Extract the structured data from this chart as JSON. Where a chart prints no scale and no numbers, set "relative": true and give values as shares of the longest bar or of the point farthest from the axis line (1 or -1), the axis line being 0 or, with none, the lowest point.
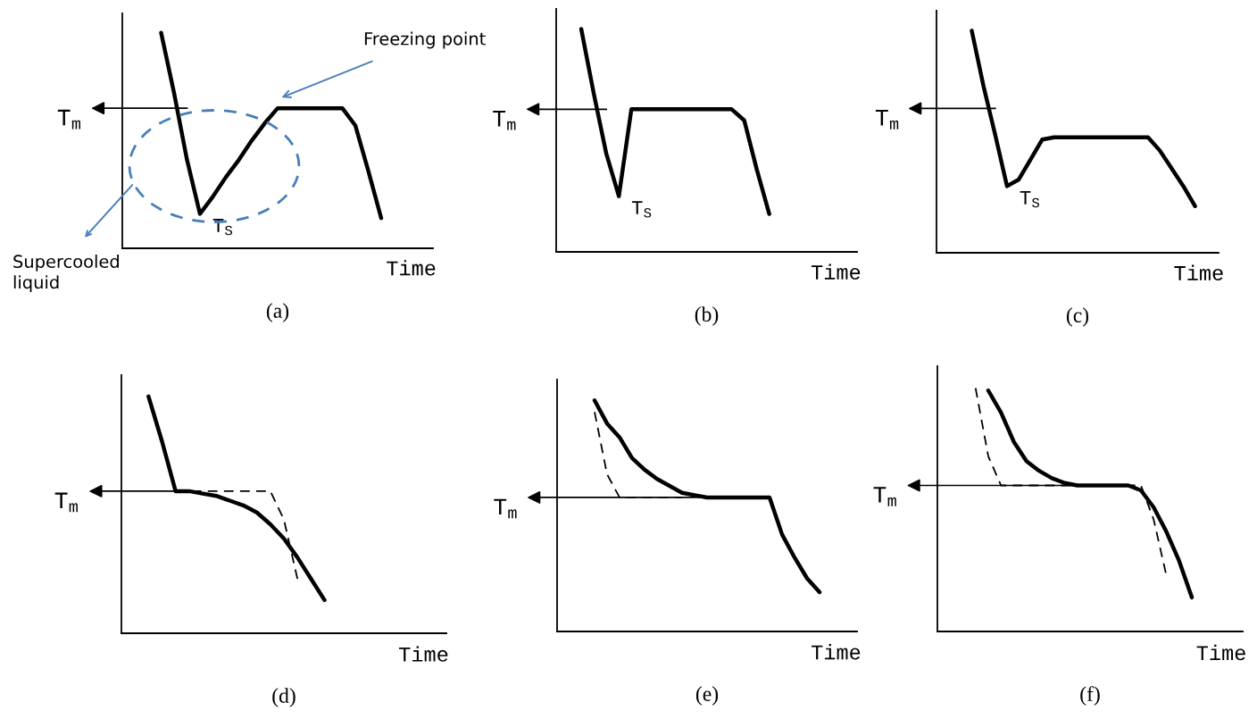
{
  "chart_data": [
    {
      "type": "line",
      "title": "(a)",
      "xlabel": "Time",
      "relative": true,
      "categories": [
        null,
        null,
        null,
        null,
        null,
        null,
        null,
        null,
        null,
        null,
        null,
        null,
        null,
        null,
        null,
        null,
        null,
        null,
        null,
        null,
        null,
        null,
        null,
        null,
        null
      ],
      "series": [
        {
          "color": "#000000",
          "line_style": "solid",
          "values": [
            null,
            null,
            null,
            1.0,
            0.72,
            0.41,
            0.16,
            0.24,
            0.33,
            0.41,
            0.5,
            0.58,
            0.65,
            0.65,
            0.65,
            0.65,
            0.65,
            0.65,
            0.57,
            0.36,
            0.14,
            null,
            null,
            null,
            null
          ]
        }
      ],
      "ref_lines": [
        {
          "axis": "y",
          "value": 0.65,
          "label": "T$_{m}$"
        }
      ],
      "annotations": [
        "T$_{S}$",
        "Freezing point",
        "Supercooled\nliquid"
      ]
    },
    {
      "type": "line",
      "title": "(b)",
      "xlabel": "Time",
      "relative": true,
      "categories": [
        null,
        null,
        null,
        null,
        null,
        null,
        null,
        null,
        null,
        null,
        null,
        null,
        null,
        null,
        null,
        null,
        null,
        null,
        null,
        null,
        null,
        null,
        null,
        null,
        null
      ],
      "series": [
        {
          "color": "#000000",
          "line_style": "solid",
          "values": [
            null,
            null,
            1.0,
            0.71,
            0.44,
            0.25,
            0.64,
            0.64,
            0.64,
            0.64,
            0.64,
            0.64,
            0.64,
            0.64,
            0.64,
            0.59,
            0.37,
            0.17,
            null,
            null,
            null,
            null,
            null,
            null,
            null
          ]
        }
      ],
      "ref_lines": [
        {
          "axis": "y",
          "value": 0.64,
          "label": "T$_{m}$"
        }
      ],
      "annotations": [
        "T$_{S}$"
      ]
    },
    {
      "type": "line",
      "title": "(c)",
      "xlabel": "Time",
      "relative": true,
      "categories": [
        null,
        null,
        null,
        null,
        null,
        null,
        null,
        null,
        null,
        null,
        null,
        null,
        null,
        null,
        null,
        null,
        null,
        null,
        null,
        null,
        null,
        null,
        null,
        null,
        null
      ],
      "series": [
        {
          "color": "#000000",
          "line_style": "solid",
          "values": [
            null,
            null,
            null,
            1.0,
            0.75,
            0.53,
            0.3,
            0.33,
            0.42,
            0.51,
            0.52,
            0.52,
            0.52,
            0.52,
            0.52,
            0.52,
            0.52,
            0.52,
            0.52,
            0.46,
            0.38,
            0.3,
            0.21,
            null,
            null
          ]
        }
      ],
      "ref_lines": [
        {
          "axis": "y",
          "value": 0.65,
          "label": "T$_{m}$"
        }
      ],
      "annotations": [
        "T$_{S}$"
      ]
    },
    {
      "type": "line",
      "title": "(d)",
      "xlabel": "Time",
      "relative": true,
      "categories": [
        null,
        null,
        null,
        null,
        null,
        null,
        null,
        null,
        null,
        null,
        null,
        null,
        null,
        null,
        null,
        null,
        null,
        null,
        null,
        null,
        null,
        null,
        null,
        null,
        null
      ],
      "series": [
        {
          "color": "#000000",
          "line_style": "solid",
          "values": [
            null,
            null,
            1.0,
            0.81,
            0.6,
            0.6,
            0.59,
            0.58,
            0.56,
            0.54,
            0.51,
            0.46,
            0.4,
            0.32,
            0.23,
            0.14,
            null,
            null,
            null,
            null,
            null,
            null,
            null,
            null,
            null
          ]
        },
        {
          "color": "#000000",
          "line_style": "dashed",
          "values": [
            null,
            null,
            null,
            null,
            0.6,
            0.6,
            0.6,
            0.6,
            0.6,
            0.6,
            0.6,
            0.6,
            0.48,
            0.23,
            null,
            null,
            null,
            null,
            null,
            null,
            null,
            null,
            null,
            null,
            null
          ]
        }
      ],
      "ref_lines": [
        {
          "axis": "y",
          "value": 0.6,
          "label": "T$_{m}$"
        }
      ]
    },
    {
      "type": "line",
      "title": "(e)",
      "xlabel": "Time",
      "relative": true,
      "categories": [
        null,
        null,
        null,
        null,
        null,
        null,
        null,
        null,
        null,
        null,
        null,
        null,
        null,
        null,
        null,
        null,
        null,
        null,
        null,
        null,
        null,
        null,
        null,
        null,
        null
      ],
      "series": [
        {
          "color": "#000000",
          "line_style": "solid",
          "values": [
            null,
            null,
            null,
            1.0,
            0.9,
            0.84,
            0.75,
            0.7,
            0.66,
            0.63,
            0.6,
            0.59,
            0.58,
            0.58,
            0.58,
            0.58,
            0.58,
            0.58,
            0.42,
            0.32,
            0.23,
            0.17,
            null,
            null,
            null
          ]
        },
        {
          "color": "#000000",
          "line_style": "dashed",
          "values": [
            null,
            null,
            null,
            0.95,
            0.68,
            0.58,
            0.58,
            0.58,
            0.58,
            0.58,
            0.58,
            null,
            null,
            null,
            null,
            null,
            null,
            null,
            null,
            null,
            null,
            null,
            null,
            null,
            null
          ]
        }
      ],
      "ref_lines": [
        {
          "axis": "y",
          "value": 0.58,
          "label": "T$_{m}$"
        }
      ]
    },
    {
      "type": "line",
      "title": "(f)",
      "xlabel": "Time",
      "relative": true,
      "categories": [
        null,
        null,
        null,
        null,
        null,
        null,
        null,
        null,
        null,
        null,
        null,
        null,
        null,
        null,
        null,
        null,
        null,
        null,
        null,
        null,
        null,
        null,
        null,
        null,
        null
      ],
      "series": [
        {
          "color": "#000000",
          "line_style": "solid",
          "values": [
            null,
            null,
            null,
            null,
            0.99,
            0.9,
            0.78,
            0.7,
            0.66,
            0.63,
            0.61,
            0.6,
            0.6,
            0.6,
            0.6,
            0.6,
            0.58,
            0.51,
            0.41,
            0.29,
            0.14,
            null,
            null,
            null,
            null
          ]
        },
        {
          "color": "#000000",
          "line_style": "dashed",
          "values": [
            null,
            null,
            null,
            1.0,
            0.72,
            0.6,
            0.6,
            0.6,
            0.6,
            0.6,
            0.6,
            0.6,
            0.6,
            0.6,
            0.6,
            0.6,
            0.6,
            0.46,
            0.23,
            null,
            null,
            null,
            null,
            null,
            null
          ]
        }
      ],
      "ref_lines": [
        {
          "axis": "y",
          "value": 0.6,
          "label": "T$_{m}$"
        }
      ]
    }
  ]
}
